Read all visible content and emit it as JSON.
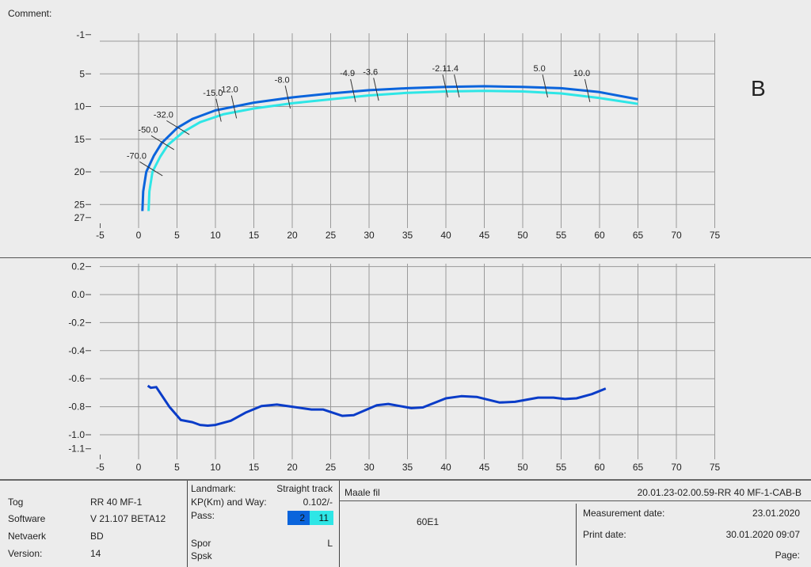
{
  "comment_label": "Comment:",
  "side_label": "B",
  "colors": {
    "pass1": "#0a64dc",
    "pass2": "#2ee6e6",
    "lower_line": "#0a3cc8",
    "grid": "#9a9a9a"
  },
  "chart_data": [
    {
      "type": "line",
      "name": "track-geometry-plan",
      "xlim": [
        -5,
        75
      ],
      "ylim": [
        -1,
        27
      ],
      "y_inverted": true,
      "xticks": [
        -5,
        0,
        5,
        10,
        15,
        20,
        25,
        30,
        35,
        40,
        45,
        50,
        55,
        60,
        65,
        70,
        75
      ],
      "yticks": [
        -1,
        5,
        10,
        15,
        20,
        25,
        27
      ],
      "grid": true,
      "series": [
        {
          "name": "pass 2",
          "color": "#0a64dc",
          "points": [
            [
              0.5,
              26
            ],
            [
              0.6,
              23
            ],
            [
              1,
              20
            ],
            [
              2,
              17.5
            ],
            [
              3,
              15.6
            ],
            [
              5,
              13.3
            ],
            [
              7,
              11.9
            ],
            [
              10,
              10.6
            ],
            [
              15,
              9.4
            ],
            [
              20,
              8.6
            ],
            [
              25,
              8
            ],
            [
              30,
              7.5
            ],
            [
              35,
              7.2
            ],
            [
              40,
              7
            ],
            [
              45,
              6.9
            ],
            [
              50,
              7
            ],
            [
              55,
              7.2
            ],
            [
              60,
              7.8
            ],
            [
              65,
              8.9
            ]
          ]
        },
        {
          "name": "pass 11",
          "color": "#2ee6e6",
          "points": [
            [
              1.3,
              26
            ],
            [
              1.4,
              23
            ],
            [
              1.8,
              20
            ],
            [
              2.8,
              17.7
            ],
            [
              3.8,
              15.9
            ],
            [
              5.8,
              13.9
            ],
            [
              8,
              12.4
            ],
            [
              11,
              11.2
            ],
            [
              15,
              10.3
            ],
            [
              20,
              9.5
            ],
            [
              25,
              8.9
            ],
            [
              30,
              8.3
            ],
            [
              35,
              7.9
            ],
            [
              40,
              7.7
            ],
            [
              45,
              7.6
            ],
            [
              50,
              7.7
            ],
            [
              55,
              8
            ],
            [
              60,
              8.7
            ],
            [
              65,
              9.6
            ]
          ]
        }
      ],
      "annotations": [
        {
          "text": "-70.0",
          "x": 2.0,
          "y": 19.8
        },
        {
          "text": "-50.0",
          "x": 3.5,
          "y": 15.8
        },
        {
          "text": "-32.0",
          "x": 5.5,
          "y": 13.5
        },
        {
          "text": "-15.0",
          "x": 10.5,
          "y": 11.0
        },
        {
          "text": "-12.0",
          "x": 12.5,
          "y": 10.5
        },
        {
          "text": "-8.0",
          "x": 19.5,
          "y": 9.0
        },
        {
          "text": "-4.9",
          "x": 28,
          "y": 8.0
        },
        {
          "text": "-3.6",
          "x": 31,
          "y": 7.8
        },
        {
          "text": "-2.1",
          "x": 40,
          "y": 7.3
        },
        {
          "text": "-1.4",
          "x": 41.5,
          "y": 7.3
        },
        {
          "text": "5.0",
          "x": 53,
          "y": 7.3
        },
        {
          "text": "10.0",
          "x": 58.5,
          "y": 8.0
        }
      ]
    },
    {
      "type": "line",
      "name": "deviation-profile",
      "xlim": [
        -5,
        75
      ],
      "ylim": [
        -1.1,
        0.2
      ],
      "xticks": [
        -5,
        0,
        5,
        10,
        15,
        20,
        25,
        30,
        35,
        40,
        45,
        50,
        55,
        60,
        65,
        70,
        75
      ],
      "yticks": [
        0.2,
        0.0,
        -0.2,
        -0.4,
        -0.6,
        -0.8,
        -1.0,
        -1.1
      ],
      "ytick_labels": [
        "0.2",
        "0.0",
        "-0.2",
        "-0.4",
        "-0.6",
        "-0.8",
        "-1.0",
        "-1.1"
      ],
      "grid": true,
      "series": [
        {
          "name": "deviation",
          "color": "#0a3cc8",
          "points": [
            [
              1.2,
              -0.65
            ],
            [
              1.6,
              -0.665
            ],
            [
              2.3,
              -0.66
            ],
            [
              4,
              -0.8
            ],
            [
              5.5,
              -0.895
            ],
            [
              7,
              -0.91
            ],
            [
              8,
              -0.93
            ],
            [
              9,
              -0.935
            ],
            [
              10,
              -0.93
            ],
            [
              12,
              -0.9
            ],
            [
              14,
              -0.84
            ],
            [
              16,
              -0.795
            ],
            [
              18,
              -0.785
            ],
            [
              20,
              -0.8
            ],
            [
              22.5,
              -0.82
            ],
            [
              24,
              -0.82
            ],
            [
              26.5,
              -0.865
            ],
            [
              28,
              -0.86
            ],
            [
              31,
              -0.79
            ],
            [
              32.5,
              -0.78
            ],
            [
              35.5,
              -0.81
            ],
            [
              37,
              -0.805
            ],
            [
              40,
              -0.74
            ],
            [
              42,
              -0.725
            ],
            [
              44,
              -0.73
            ],
            [
              47,
              -0.77
            ],
            [
              49,
              -0.765
            ],
            [
              52,
              -0.735
            ],
            [
              54,
              -0.735
            ],
            [
              55.5,
              -0.745
            ],
            [
              57,
              -0.74
            ],
            [
              59,
              -0.71
            ],
            [
              60.8,
              -0.67
            ]
          ]
        }
      ]
    }
  ],
  "footer": {
    "info": [
      {
        "label": "Tog",
        "value": "RR 40 MF-1"
      },
      {
        "label": "Software",
        "value": "V 21.107 BETA12"
      },
      {
        "label": "Netvaerk",
        "value": "BD"
      },
      {
        "label": "Version:",
        "value": "14"
      }
    ],
    "landmark_label": "Landmark:",
    "landmark_value": "Straight track",
    "kp_label": "KP(Km) and Way:",
    "kp_value": "0.102/-",
    "pass_label": "Pass:",
    "pass_values": [
      "2",
      "11"
    ],
    "spor_label": "Spor",
    "spor_value": "L",
    "spsk_label": "Spsk",
    "maale_label": "Maale fil",
    "maale_value": "20.01.23-02.00.59-RR 40 MF-1-CAB-B",
    "rail_profile": "60E1",
    "measurement_date_label": "Measurement date:",
    "measurement_date": "23.01.2020",
    "print_date_label": "Print date:",
    "print_date": "30.01.2020 09:07",
    "page_label": "Page:"
  }
}
